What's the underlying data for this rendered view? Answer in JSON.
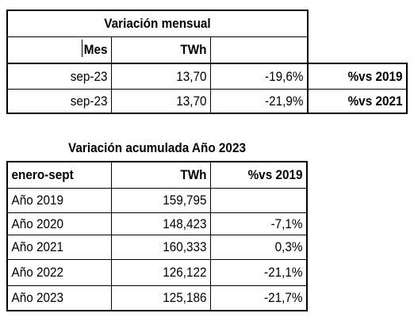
{
  "monthly": {
    "title": "Variación mensual",
    "header_mes": "Mes",
    "header_twh": "TWh",
    "rows": [
      {
        "mes": "sep-23",
        "twh": "13,70",
        "pct": "-19,6%",
        "label": "%vs 2019"
      },
      {
        "mes": "sep-23",
        "twh": "13,70",
        "pct": "-21,9%",
        "label": "%vs 2021"
      }
    ]
  },
  "cumulative": {
    "title": "Variación acumulada Año 2023",
    "header_period": "enero-sept",
    "header_twh": "TWh",
    "header_pct": "%vs 2019",
    "rows": [
      {
        "year": "Año 2019",
        "twh": "159,795",
        "pct": ""
      },
      {
        "year": "Año 2020",
        "twh": "148,423",
        "pct": "-7,1%"
      },
      {
        "year": "Año 2021",
        "twh": "160,333",
        "pct": "0,3%"
      },
      {
        "year": "Año 2022",
        "twh": "126,122",
        "pct": "-21,1%"
      },
      {
        "year": "Año 2023",
        "twh": "125,186",
        "pct": "-21,7%"
      }
    ]
  }
}
